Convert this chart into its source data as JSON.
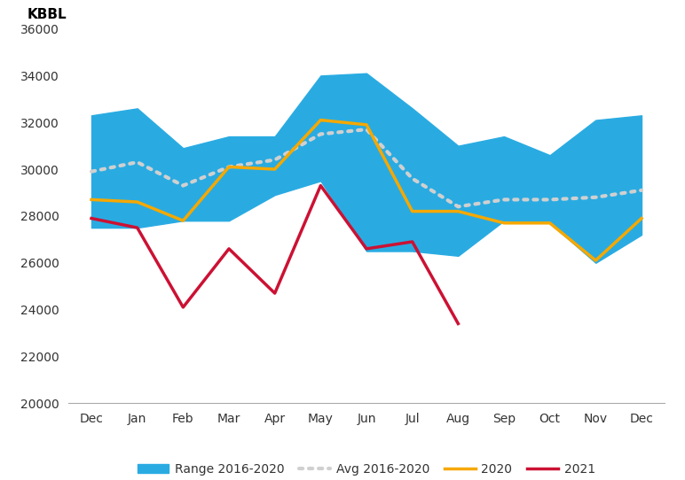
{
  "months": [
    "Dec",
    "Jan",
    "Feb",
    "Mar",
    "Apr",
    "May",
    "Jun",
    "Jul",
    "Aug",
    "Sep",
    "Oct",
    "Nov",
    "Dec"
  ],
  "range_upper": [
    32300,
    32600,
    30900,
    31400,
    31400,
    34000,
    34100,
    32600,
    31000,
    31400,
    30600,
    32100,
    32300
  ],
  "range_lower": [
    27500,
    27500,
    27800,
    27800,
    28900,
    29500,
    26500,
    26500,
    26300,
    27800,
    27700,
    26000,
    27200
  ],
  "avg_2016_2020": [
    29900,
    30300,
    29300,
    30100,
    30400,
    31500,
    31700,
    29600,
    28400,
    28700,
    28700,
    28800,
    29100
  ],
  "line_2020": [
    28700,
    28600,
    27800,
    30100,
    30000,
    32100,
    31900,
    28200,
    28200,
    27700,
    27700,
    26100,
    27900
  ],
  "line_2021": [
    27900,
    27500,
    24100,
    26600,
    24700,
    29300,
    26600,
    26900,
    23400,
    null,
    null,
    null,
    null
  ],
  "range_color": "#29ABE2",
  "avg_color": "#D0D0D0",
  "line_2020_color": "#F5A800",
  "line_2021_color": "#CC1133",
  "ylabel": "KBBL",
  "ylim": [
    20000,
    36000
  ],
  "yticks": [
    20000,
    22000,
    24000,
    26000,
    28000,
    30000,
    32000,
    34000,
    36000
  ],
  "legend_range_label": "Range 2016-2020",
  "legend_avg_label": "Avg 2016-2020",
  "legend_2020_label": "2020",
  "legend_2021_label": "2021",
  "bg_color": "#FFFFFF"
}
